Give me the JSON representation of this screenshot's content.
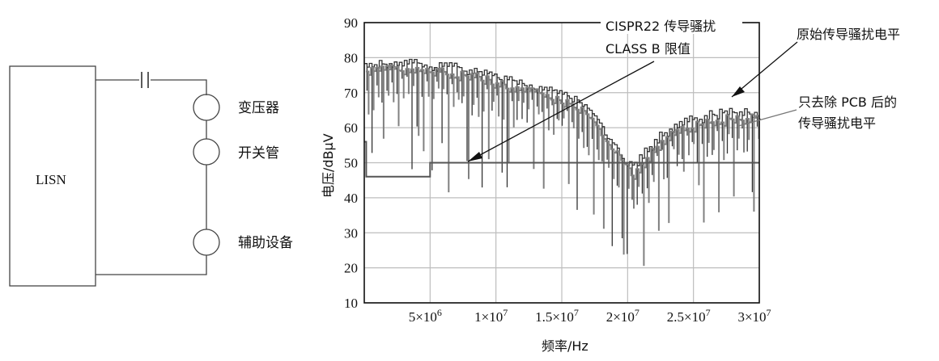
{
  "circuit": {
    "lisn_label": "LISN",
    "components": [
      "变压器",
      "开关管",
      "辅助设备"
    ]
  },
  "chart_data": {
    "type": "line",
    "xlabel": "频率/Hz",
    "ylabel": "电压/dBμV",
    "xlim": [
      0,
      30000000
    ],
    "ylim": [
      10,
      90
    ],
    "yticks": [
      10,
      20,
      30,
      40,
      50,
      60,
      70,
      80,
      90
    ],
    "xticks": [
      {
        "value": 5000000,
        "label_mantissa": "5×10",
        "label_exp": "6"
      },
      {
        "value": 10000000,
        "label_mantissa": "1×10",
        "label_exp": "7"
      },
      {
        "value": 15000000,
        "label_mantissa": "1.5×10",
        "label_exp": "7"
      },
      {
        "value": 20000000,
        "label_mantissa": "2×10",
        "label_exp": "7"
      },
      {
        "value": 25000000,
        "label_mantissa": "2.5×10",
        "label_exp": "7"
      },
      {
        "value": 30000000,
        "label_mantissa": "3×10",
        "label_exp": "7"
      }
    ],
    "grid": true,
    "annotations": {
      "limit_line1": "CISPR22 传导骚扰",
      "limit_line2": "CLASS B 限值",
      "original": "原始传导骚扰电平",
      "pcb_line1": "只去除 PCB 后的",
      "pcb_line2": "传导骚扰电平"
    },
    "series": [
      {
        "name": "CISPR22 传导骚扰 CLASS B 限值",
        "color": "#555555",
        "x": [
          0,
          150000,
          150000,
          5000000,
          5000000,
          30000000
        ],
        "y": [
          56,
          56,
          46,
          46,
          50,
          50
        ]
      },
      {
        "name": "原始传导骚扰电平",
        "color": "#333333",
        "envelope_x": [
          0,
          2000000,
          4000000,
          6000000,
          8000000,
          10000000,
          12000000,
          14000000,
          16000000,
          17000000,
          18000000,
          19000000,
          20000000,
          21000000,
          22000000,
          24000000,
          26000000,
          28000000,
          30000000
        ],
        "envelope_y": [
          80,
          80,
          80,
          79,
          78,
          76,
          74,
          72,
          69,
          66,
          61,
          56,
          50,
          53,
          58,
          63,
          65,
          66,
          66
        ]
      },
      {
        "name": "只去除 PCB 后的传导骚扰电平",
        "color": "#808080",
        "envelope_x": [
          0,
          2000000,
          4000000,
          6000000,
          8000000,
          10000000,
          12000000,
          14000000,
          16000000,
          17000000,
          18000000,
          19000000,
          20000000,
          21000000,
          22000000,
          24000000,
          26000000,
          28000000,
          30000000
        ],
        "envelope_y": [
          78,
          78,
          78,
          77,
          76,
          74,
          72,
          70,
          67,
          64,
          59,
          54,
          48,
          51,
          56,
          61,
          63,
          64,
          64
        ]
      }
    ]
  }
}
